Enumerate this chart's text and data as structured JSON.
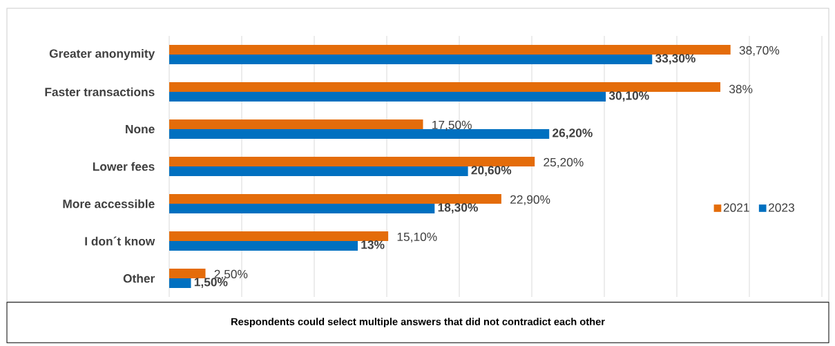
{
  "chart_data": {
    "type": "bar",
    "orientation": "horizontal",
    "categories": [
      "Greater anonymity",
      "Faster transactions",
      "None",
      "Lower fees",
      "More accessible",
      "I don´t know",
      "Other"
    ],
    "series": [
      {
        "name": "2021",
        "color": "#e46c0a",
        "values": [
          38.7,
          38,
          17.5,
          25.2,
          22.9,
          15.1,
          2.5
        ],
        "value_labels": [
          "38,70%",
          "38%",
          "17,50%",
          "25,20%",
          "22,90%",
          "15,10%",
          "2,50%"
        ]
      },
      {
        "name": "2023",
        "color": "#0070c0",
        "values": [
          33.3,
          30.1,
          26.2,
          20.6,
          18.3,
          13,
          1.5
        ],
        "value_labels": [
          "33,30%",
          "30,10%",
          "26,20%",
          "20,60%",
          "18,30%",
          "13%",
          "1,50%"
        ]
      }
    ],
    "xlim": [
      0,
      45
    ],
    "xticks": [
      {
        "value": 0,
        "label": null
      },
      {
        "value": 5,
        "label": null
      },
      {
        "value": 10,
        "label": null
      },
      {
        "value": 15,
        "label": null
      },
      {
        "value": 20,
        "label": null
      },
      {
        "value": 25,
        "label": null
      },
      {
        "value": 30,
        "label": null
      },
      {
        "value": 35,
        "label": null
      },
      {
        "value": 40,
        "label": null
      },
      {
        "value": 45,
        "label": null
      }
    ],
    "tick_labels": "y",
    "grid": "x",
    "legend": "right",
    "annotations": [
      "Respondents could select multiple answers that did not contradict each other"
    ]
  }
}
